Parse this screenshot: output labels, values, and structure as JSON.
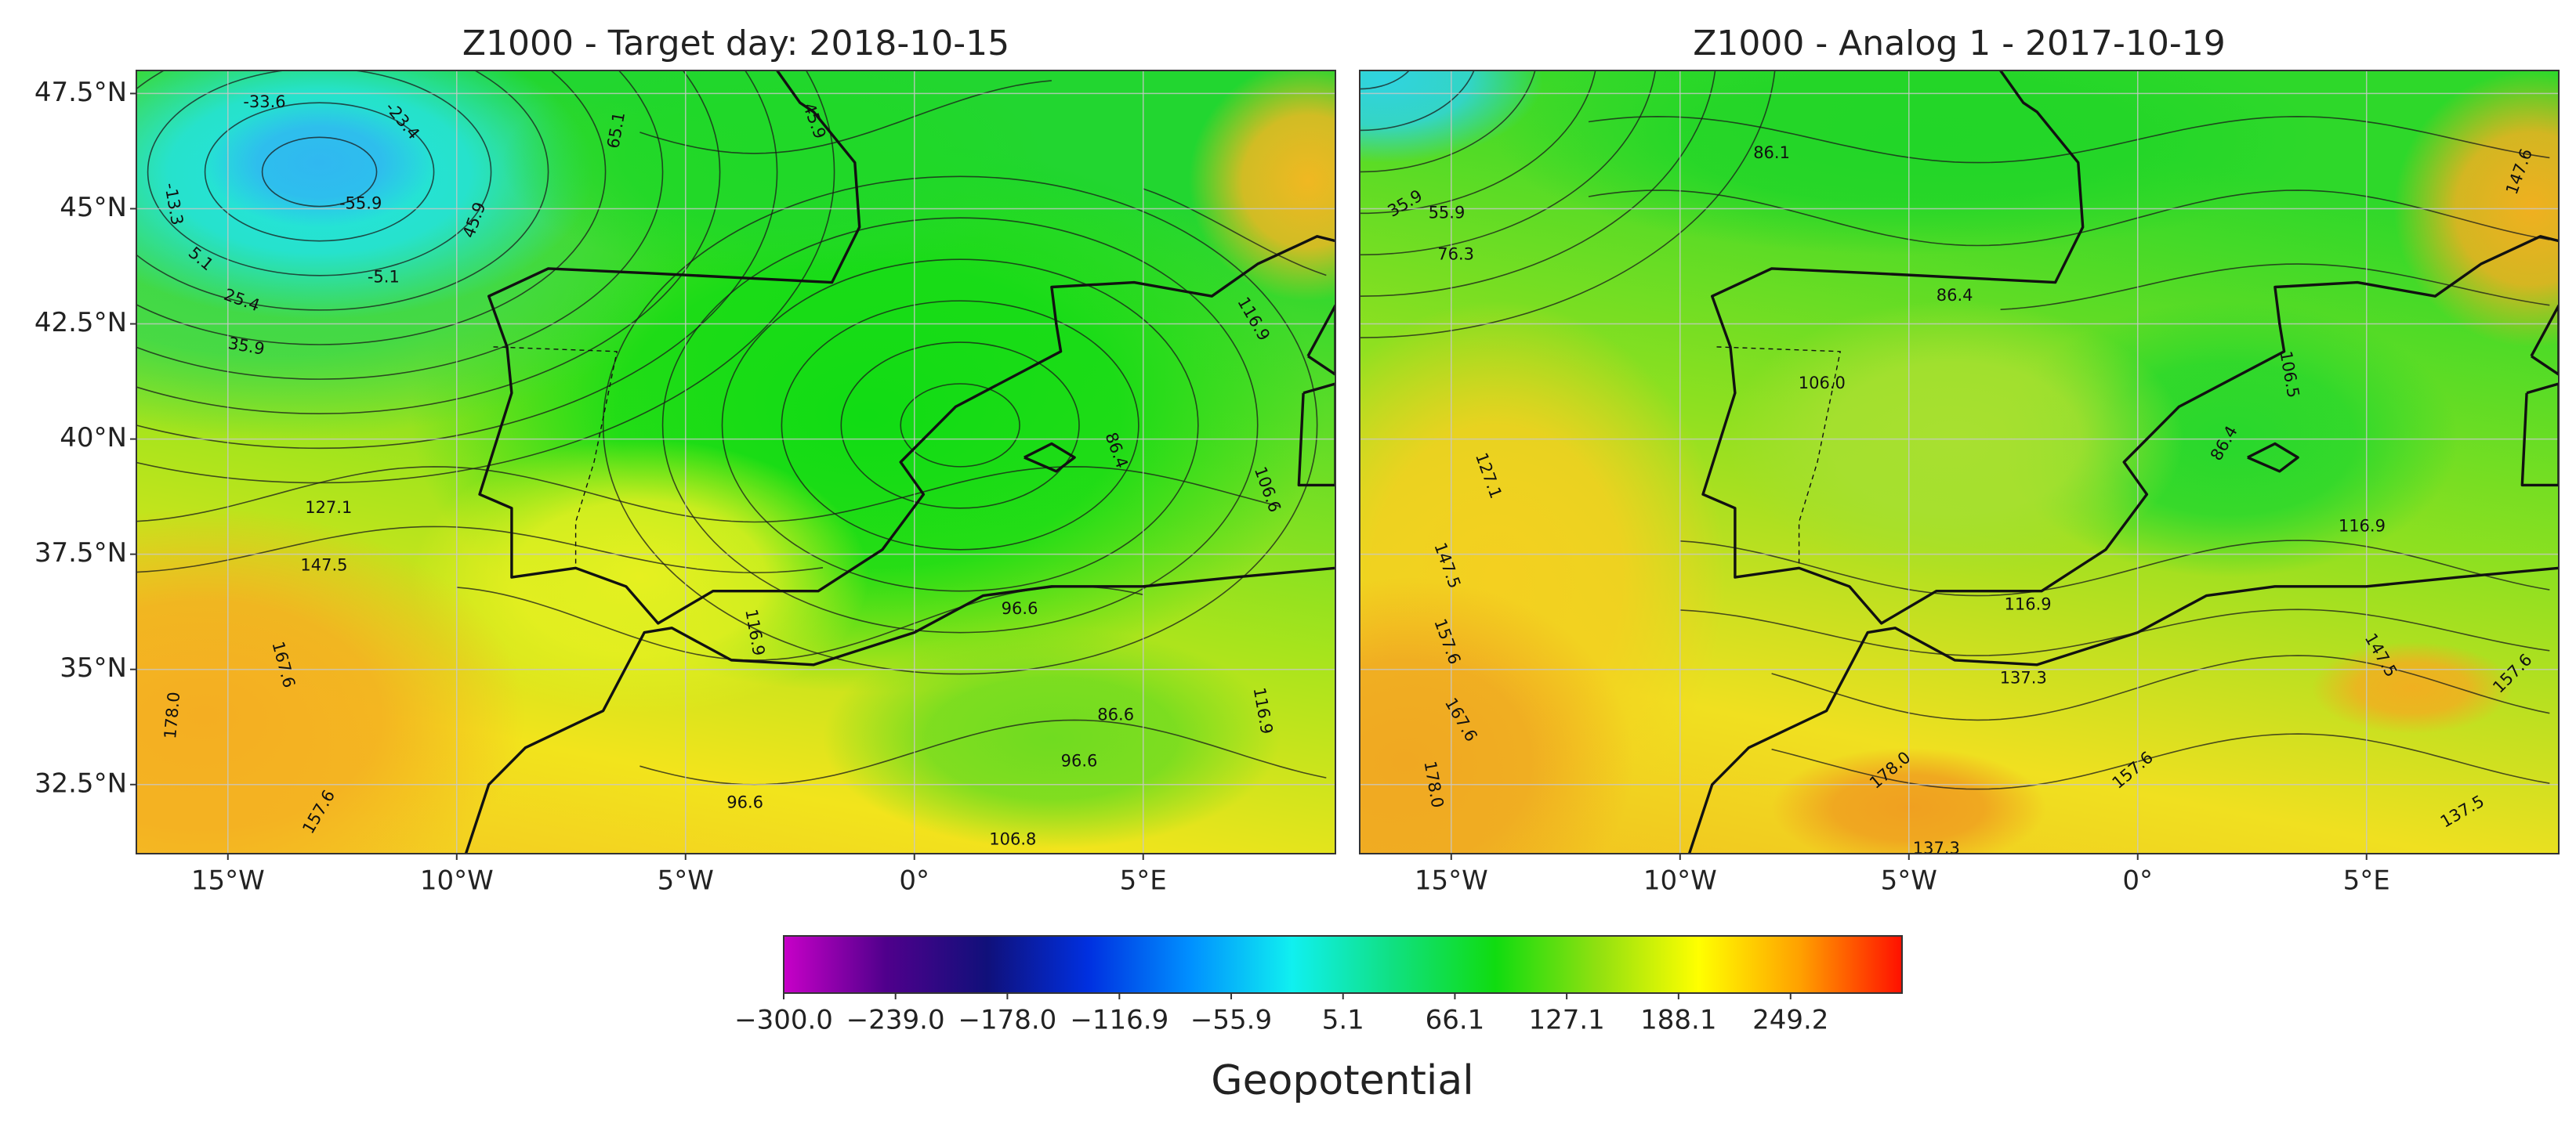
{
  "maps": [
    {
      "title": "Z1000 - Target day: 2018-10-15",
      "contour_labels": [
        "-33.6",
        "-23.4",
        "-13.3",
        "-55.9",
        "-5.1",
        "5.1",
        "25.4",
        "35.9",
        "127.1",
        "147.5",
        "167.6",
        "178.0",
        "157.6",
        "45.9",
        "65.1",
        "45.9",
        "116.9",
        "96.6",
        "86.4",
        "86.6",
        "96.6",
        "96.6",
        "106.8",
        "106.6",
        "116.9",
        "116.9"
      ]
    },
    {
      "title": "Z1000 - Analog 1 - 2017-10-19",
      "contour_labels": [
        "35.9",
        "55.9",
        "76.3",
        "86.1",
        "86.4",
        "106.0",
        "106.5",
        "86.4",
        "116.9",
        "116.9",
        "137.3",
        "127.1",
        "147.5",
        "157.6",
        "167.6",
        "178.0",
        "178.0",
        "157.6",
        "137.3",
        "137.5",
        "147.5",
        "157.6",
        "147.6"
      ]
    }
  ],
  "xlim": [
    -17,
    9.2
  ],
  "ylim": [
    31,
    48
  ],
  "xticks": [
    {
      "value": -15,
      "label": "15°W"
    },
    {
      "value": -10,
      "label": "10°W"
    },
    {
      "value": -5,
      "label": "5°W"
    },
    {
      "value": 0,
      "label": "0°"
    },
    {
      "value": 5,
      "label": "5°E"
    }
  ],
  "yticks": [
    {
      "value": 47.5,
      "label": "47.5°N"
    },
    {
      "value": 45,
      "label": "45°N"
    },
    {
      "value": 42.5,
      "label": "42.5°N"
    },
    {
      "value": 40,
      "label": "40°N"
    },
    {
      "value": 37.5,
      "label": "37.5°N"
    },
    {
      "value": 35,
      "label": "35°N"
    },
    {
      "value": 32.5,
      "label": "32.5°N"
    }
  ],
  "grid": true,
  "colorbar": {
    "label": "Geopotential",
    "clim": [
      -300,
      310
    ],
    "ticks": [
      {
        "value": -300,
        "label": "−300.0"
      },
      {
        "value": -239,
        "label": "−239.0"
      },
      {
        "value": -178,
        "label": "−178.0"
      },
      {
        "value": -116.9,
        "label": "−116.9"
      },
      {
        "value": -55.9,
        "label": "−55.9"
      },
      5.1,
      66.1,
      127.1,
      188.1,
      249.2
    ],
    "colors": [
      "#c800c8",
      "#50008c",
      "#10107a",
      "#0030e0",
      "#0090ff",
      "#10f0f0",
      "#10e080",
      "#10dc10",
      "#90e010",
      "#ffff00",
      "#ffa000",
      "#ff1000"
    ]
  }
}
